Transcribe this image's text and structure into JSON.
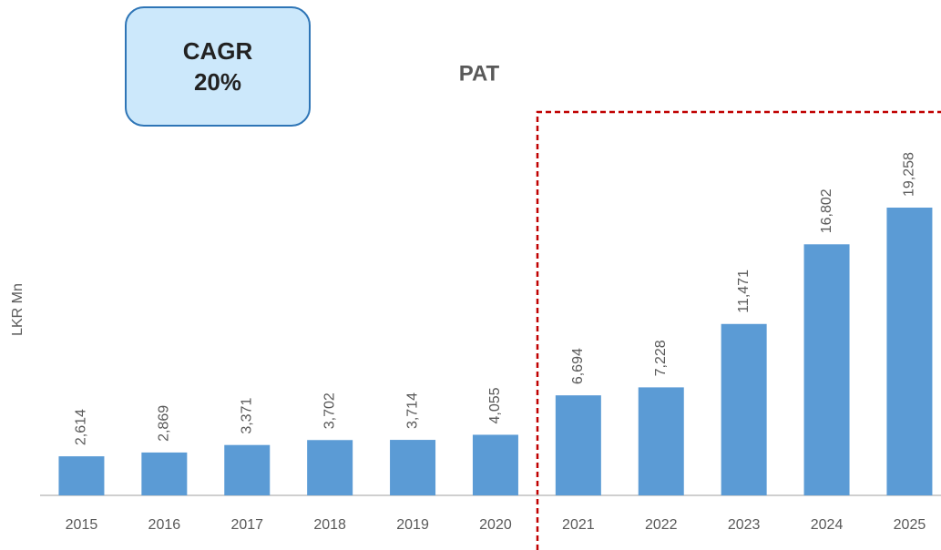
{
  "chart_data": {
    "type": "bar",
    "title": "PAT",
    "y_label": "LKR Mn",
    "annotation": [
      "CAGR",
      "20%"
    ],
    "categories": [
      "2015",
      "2016",
      "2017",
      "2018",
      "2019",
      "2020",
      "2021",
      "2022",
      "2023",
      "2024",
      "2025"
    ],
    "values": [
      2614,
      2869,
      3371,
      3702,
      3714,
      4055,
      6694,
      7228,
      11471,
      16802,
      19258
    ],
    "value_labels": [
      "2,614",
      "2,869",
      "3,371",
      "3,702",
      "3,714",
      "4,055",
      "6,694",
      "7,228",
      "11,471",
      "16,802",
      "19,258"
    ],
    "color": "#5b9bd5",
    "ylim": [
      0,
      22000
    ]
  }
}
